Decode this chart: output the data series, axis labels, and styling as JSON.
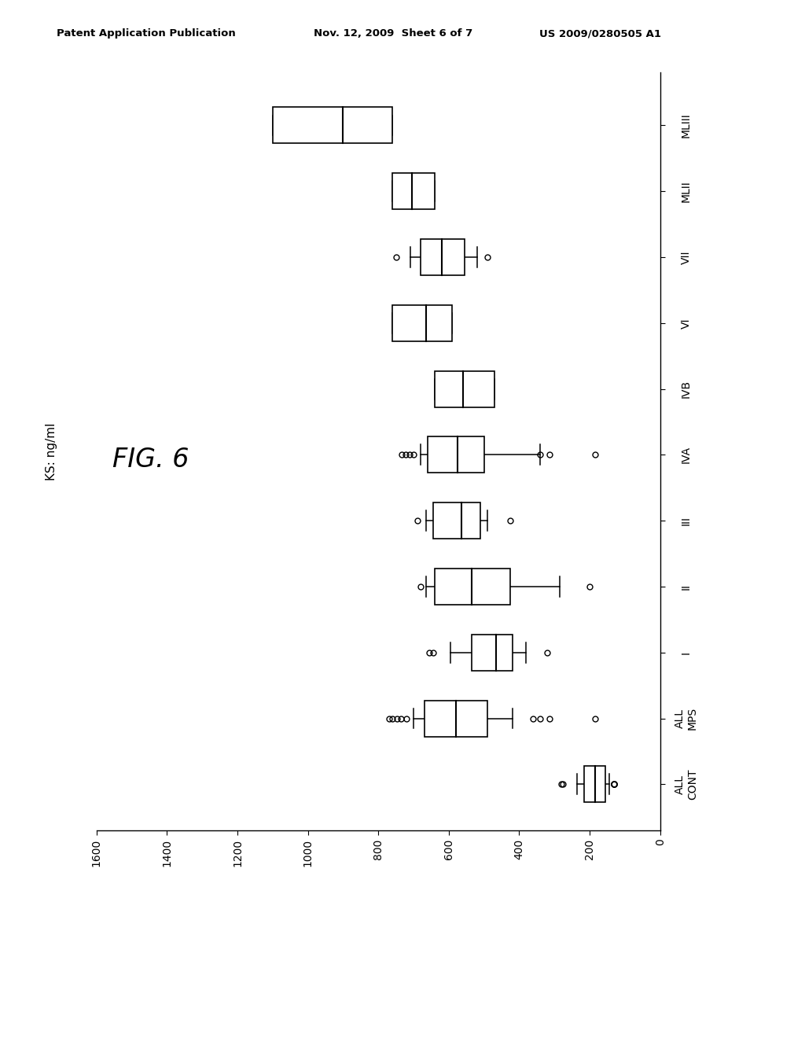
{
  "xlabel": "KS: ng/ml",
  "xlim_inverted": [
    1600,
    0
  ],
  "xticks": [
    1600,
    1400,
    1200,
    1000,
    800,
    600,
    400,
    200,
    0
  ],
  "xtick_labels": [
    "1600",
    "1400",
    "1200",
    "1000",
    "800",
    "600",
    "400",
    "200",
    "0"
  ],
  "boxes": [
    {
      "label": "ALL\nCONT",
      "q1": 155,
      "median": 185,
      "q3": 215,
      "whisker_low": 145,
      "whisker_high": 235,
      "outliers": [
        130,
        130,
        130,
        130,
        130,
        275,
        280
      ]
    },
    {
      "label": "ALL\nMPS",
      "q1": 490,
      "median": 580,
      "q3": 670,
      "whisker_low": 420,
      "whisker_high": 700,
      "outliers": [
        185,
        315,
        340,
        360,
        720,
        735,
        748,
        760,
        770
      ]
    },
    {
      "label": "I",
      "q1": 420,
      "median": 465,
      "q3": 535,
      "whisker_low": 380,
      "whisker_high": 595,
      "outliers": [
        320,
        645,
        655
      ]
    },
    {
      "label": "II",
      "q1": 425,
      "median": 535,
      "q3": 640,
      "whisker_low": 285,
      "whisker_high": 665,
      "outliers": [
        200,
        680
      ]
    },
    {
      "label": "III",
      "q1": 510,
      "median": 565,
      "q3": 645,
      "whisker_low": 490,
      "whisker_high": 665,
      "outliers": [
        425,
        690
      ]
    },
    {
      "label": "IVA",
      "q1": 500,
      "median": 575,
      "q3": 660,
      "whisker_low": 340,
      "whisker_high": 680,
      "outliers": [
        185,
        315,
        340,
        700,
        712,
        722,
        733
      ]
    },
    {
      "label": "IVB",
      "q1": 470,
      "median": 560,
      "q3": 640,
      "whisker_low": 470,
      "whisker_high": 640,
      "outliers": []
    },
    {
      "label": "VI",
      "q1": 590,
      "median": 665,
      "q3": 760,
      "whisker_low": 590,
      "whisker_high": 760,
      "outliers": []
    },
    {
      "label": "VII",
      "q1": 555,
      "median": 620,
      "q3": 680,
      "whisker_low": 520,
      "whisker_high": 710,
      "outliers": [
        490,
        750
      ]
    },
    {
      "label": "MLII",
      "q1": 640,
      "median": 705,
      "q3": 760,
      "whisker_low": 640,
      "whisker_high": 760,
      "outliers": []
    },
    {
      "label": "MLIII",
      "q1": 760,
      "median": 900,
      "q3": 1100,
      "whisker_low": 760,
      "whisker_high": 1100,
      "outliers": []
    }
  ],
  "background_color": "#ffffff",
  "box_color": "#ffffff",
  "box_edgecolor": "#000000",
  "whisker_color": "#000000",
  "median_color": "#000000",
  "outlier_color": "#000000",
  "header_left": "Patent Application Publication",
  "header_mid": "Nov. 12, 2009  Sheet 6 of 7",
  "header_right": "US 2009/0280505 A1",
  "fig_label": "FIG. 6"
}
